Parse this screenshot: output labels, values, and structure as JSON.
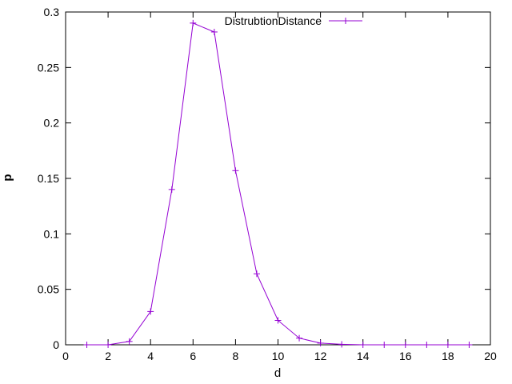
{
  "chart_data": {
    "type": "line",
    "title": "",
    "xlabel": "d",
    "ylabel": "p",
    "xlim": [
      0,
      20
    ],
    "ylim": [
      0,
      0.3
    ],
    "xticks": [
      0,
      2,
      4,
      6,
      8,
      10,
      12,
      14,
      16,
      18,
      20
    ],
    "yticks": [
      0,
      0.05,
      0.1,
      0.15,
      0.2,
      0.25,
      0.3
    ],
    "xtick_labels": [
      "0",
      "2",
      "4",
      "6",
      "8",
      "10",
      "12",
      "14",
      "16",
      "18",
      "20"
    ],
    "ytick_labels": [
      "0",
      "0.05",
      "0.1",
      "0.15",
      "0.2",
      "0.25",
      "0.3"
    ],
    "grid": false,
    "legend_position": "top-center",
    "series": [
      {
        "name": "DistrubtionDistance",
        "color": "#9400d3",
        "marker": "plus",
        "x": [
          1,
          2,
          3,
          4,
          5,
          6,
          7,
          8,
          9,
          10,
          11,
          12,
          13,
          14,
          15,
          16,
          17,
          18,
          19
        ],
        "y": [
          0,
          0,
          0.003,
          0.03,
          0.14,
          0.29,
          0.282,
          0.157,
          0.064,
          0.022,
          0.006,
          0.0015,
          0.0004,
          0,
          0,
          0,
          0,
          0,
          0
        ]
      }
    ]
  }
}
